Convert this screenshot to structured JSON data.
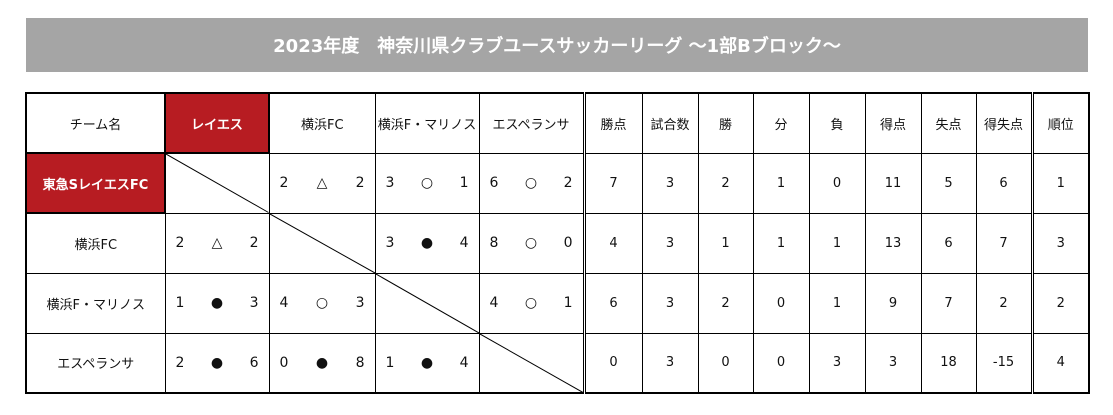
{
  "title": "2023年度　神奈川県クラブユースサッカーリーグ ～1部Bブロック～",
  "colors": {
    "accent": "#b71c22",
    "title_bg": "#a5a5a5",
    "negative": "#ee0000"
  },
  "headers": [
    "チーム名",
    "レイエス",
    "横浜FC",
    "横浜F・マリノス",
    "エスペランサ",
    "勝点",
    "試合数",
    "勝",
    "分",
    "負",
    "得点",
    "失点",
    "得失点",
    "順位"
  ],
  "rows": [
    {
      "team": "東急SレイエスFC",
      "results": [
        null,
        [
          "2",
          "△",
          "2"
        ],
        [
          "3",
          "○",
          "1"
        ],
        [
          "6",
          "○",
          "2"
        ]
      ],
      "stats": [
        "7",
        "3",
        "2",
        "1",
        "0",
        "11",
        "5",
        "6",
        "1"
      ]
    },
    {
      "team": "横浜FC",
      "results": [
        [
          "2",
          "△",
          "2"
        ],
        null,
        [
          "3",
          "●",
          "4"
        ],
        [
          "8",
          "○",
          "0"
        ]
      ],
      "stats": [
        "4",
        "3",
        "1",
        "1",
        "1",
        "13",
        "6",
        "7",
        "3"
      ]
    },
    {
      "team": "横浜F・マリノス",
      "results": [
        [
          "1",
          "●",
          "3"
        ],
        [
          "4",
          "○",
          "3"
        ],
        null,
        [
          "4",
          "○",
          "1"
        ]
      ],
      "stats": [
        "6",
        "3",
        "2",
        "0",
        "1",
        "9",
        "7",
        "2",
        "2"
      ]
    },
    {
      "team": "エスペランサ",
      "results": [
        [
          "2",
          "●",
          "6"
        ],
        [
          "0",
          "●",
          "8"
        ],
        [
          "1",
          "●",
          "4"
        ],
        null
      ],
      "stats": [
        "0",
        "3",
        "0",
        "0",
        "3",
        "3",
        "18",
        "-15",
        "4"
      ]
    }
  ]
}
